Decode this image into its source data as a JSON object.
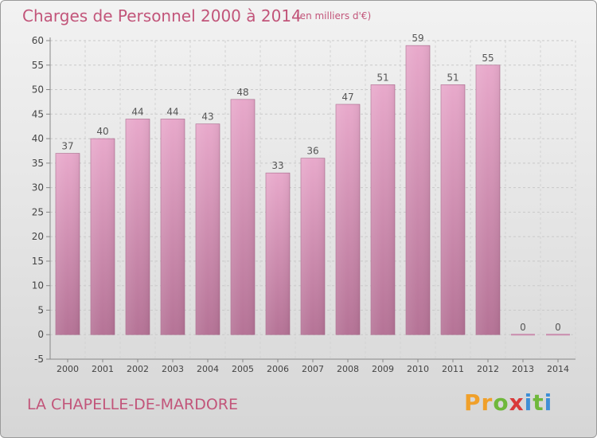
{
  "header": {
    "title": "Charges de Personnel 2000 à 2014",
    "unit": "(en milliers d'€)"
  },
  "footer": {
    "commune": "LA CHAPELLE-DE-MARDORE",
    "logo_text": "Proxiti"
  },
  "colors": {
    "accent": "#c2557a",
    "bar_top": "#e8a9cb",
    "bar_bottom": "#b57396",
    "logo_letters": [
      "#f0a02a",
      "#f0a02a",
      "#6fb83b",
      "#d93a3a",
      "#3f8fd6",
      "#6fb83b",
      "#3f8fd6"
    ]
  },
  "chart_data": {
    "type": "bar",
    "title": "Charges de Personnel 2000 à 2014",
    "subtitle": "(en milliers d'€)",
    "categories": [
      "2000",
      "2001",
      "2002",
      "2003",
      "2004",
      "2005",
      "2006",
      "2007",
      "2008",
      "2009",
      "2010",
      "2011",
      "2012",
      "2013",
      "2014"
    ],
    "values": [
      37,
      40,
      44,
      44,
      43,
      48,
      33,
      36,
      47,
      51,
      59,
      51,
      55,
      0,
      0
    ],
    "ylim": [
      -5,
      60
    ],
    "yticks": [
      -5,
      0,
      5,
      10,
      15,
      20,
      25,
      30,
      35,
      40,
      45,
      50,
      55,
      60
    ],
    "grid": true,
    "data_labels": true
  }
}
